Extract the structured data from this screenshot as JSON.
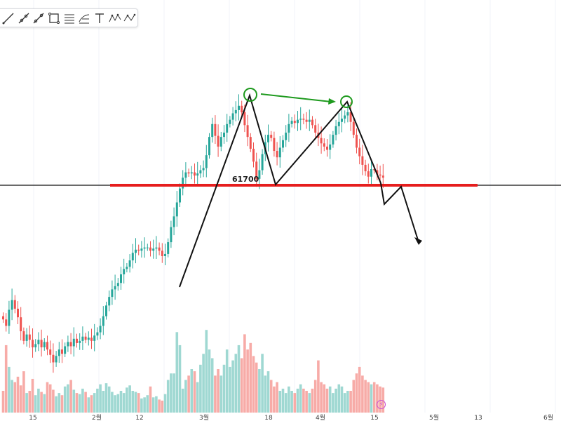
{
  "toolbar": {
    "tools": [
      {
        "icon": "trend-line-icon"
      },
      {
        "icon": "ray-icon"
      },
      {
        "icon": "extended-line-icon"
      },
      {
        "icon": "rectangle-icon"
      },
      {
        "icon": "pitchfork-icon"
      },
      {
        "icon": "fib-retracement-icon"
      },
      {
        "icon": "text-tool-icon"
      },
      {
        "icon": "xabcd-pattern-icon"
      },
      {
        "icon": "abcd-pattern-icon"
      }
    ]
  },
  "colors": {
    "up": "#26a69a",
    "down": "#ef5350",
    "volume_up": "#9fd8d2",
    "volume_down": "#f7aba7",
    "support": "#e61e1e",
    "drawing": "#111111",
    "arrow_green": "#1e9a1e"
  },
  "chart_data": {
    "type": "candlestick",
    "x_tick_labels": [
      "15",
      "2월",
      "12",
      "3월",
      "18",
      "4월",
      "15",
      "5월",
      "13",
      "6월"
    ],
    "annotations": {
      "support_level": 61700,
      "support_label": "61700",
      "pattern": "double-top"
    },
    "price_series_close": [
      49.2,
      48.6,
      50.1,
      51.0,
      50.2,
      49.4,
      48.1,
      47.2,
      47.8,
      47.3,
      46.6,
      46.9,
      47.3,
      46.6,
      47.1,
      46.4,
      45.9,
      45.2,
      45.8,
      46.4,
      46.0,
      46.7,
      47.1,
      46.7,
      47.4,
      47.0,
      47.2,
      47.6,
      47.3,
      47.5,
      47.2,
      47.7,
      48.0,
      48.6,
      49.5,
      50.5,
      51.3,
      52.0,
      52.3,
      52.6,
      53.4,
      53.9,
      54.1,
      54.7,
      55.4,
      55.7,
      55.6,
      55.8,
      55.9,
      55.9,
      55.6,
      55.8,
      55.9,
      55.6,
      55.1,
      55.3,
      56.4,
      57.8,
      58.8,
      60.1,
      61.4,
      62.4,
      62.9,
      62.8,
      62.9,
      62.6,
      62.8,
      63.1,
      63.3,
      64.5,
      66.2,
      67.4,
      66.3,
      65.3,
      66.2,
      66.6,
      67.4,
      67.8,
      68.4,
      68.7,
      69.1,
      68.5,
      67.3,
      66.2,
      65.1,
      63.9,
      62.3,
      63.1,
      64.6,
      65.7,
      66.4,
      66.1,
      64.9,
      64.3,
      65.2,
      65.9,
      66.6,
      67.4,
      67.7,
      67.5,
      67.8,
      67.9,
      67.8,
      67.6,
      67.8,
      67.3,
      66.6,
      66.1,
      65.6,
      65.3,
      65.0,
      65.5,
      66.4,
      67.2,
      67.6,
      67.9,
      68.2,
      68.5,
      67.6,
      66.4,
      65.2,
      64.4,
      63.6,
      63.0,
      62.5,
      63.2,
      63.1,
      62.7,
      62.6,
      62.4
    ],
    "volume_relative": [
      0.2,
      0.62,
      0.42,
      0.3,
      0.28,
      0.33,
      0.25,
      0.38,
      0.18,
      0.2,
      0.31,
      0.16,
      0.22,
      0.19,
      0.17,
      0.28,
      0.26,
      0.21,
      0.15,
      0.18,
      0.16,
      0.24,
      0.26,
      0.3,
      0.21,
      0.18,
      0.17,
      0.22,
      0.19,
      0.14,
      0.16,
      0.18,
      0.22,
      0.26,
      0.2,
      0.27,
      0.24,
      0.19,
      0.16,
      0.17,
      0.2,
      0.18,
      0.23,
      0.25,
      0.2,
      0.19,
      0.18,
      0.13,
      0.14,
      0.16,
      0.24,
      0.14,
      0.15,
      0.12,
      0.11,
      0.17,
      0.3,
      0.36,
      0.36,
      0.74,
      0.62,
      0.22,
      0.3,
      0.34,
      0.4,
      0.38,
      0.28,
      0.44,
      0.54,
      0.76,
      0.58,
      0.5,
      0.34,
      0.4,
      0.34,
      0.44,
      0.58,
      0.42,
      0.48,
      0.54,
      0.62,
      0.5,
      0.72,
      0.58,
      0.64,
      0.52,
      0.46,
      0.4,
      0.54,
      0.34,
      0.38,
      0.3,
      0.24,
      0.28,
      0.2,
      0.22,
      0.18,
      0.24,
      0.2,
      0.18,
      0.22,
      0.26,
      0.22,
      0.2,
      0.18,
      0.22,
      0.3,
      0.48,
      0.28,
      0.26,
      0.22,
      0.24,
      0.18,
      0.22,
      0.26,
      0.24,
      0.18,
      0.2,
      0.2,
      0.3,
      0.36,
      0.42,
      0.34,
      0.3,
      0.28,
      0.26,
      0.28,
      0.26,
      0.24,
      0.23
    ]
  }
}
